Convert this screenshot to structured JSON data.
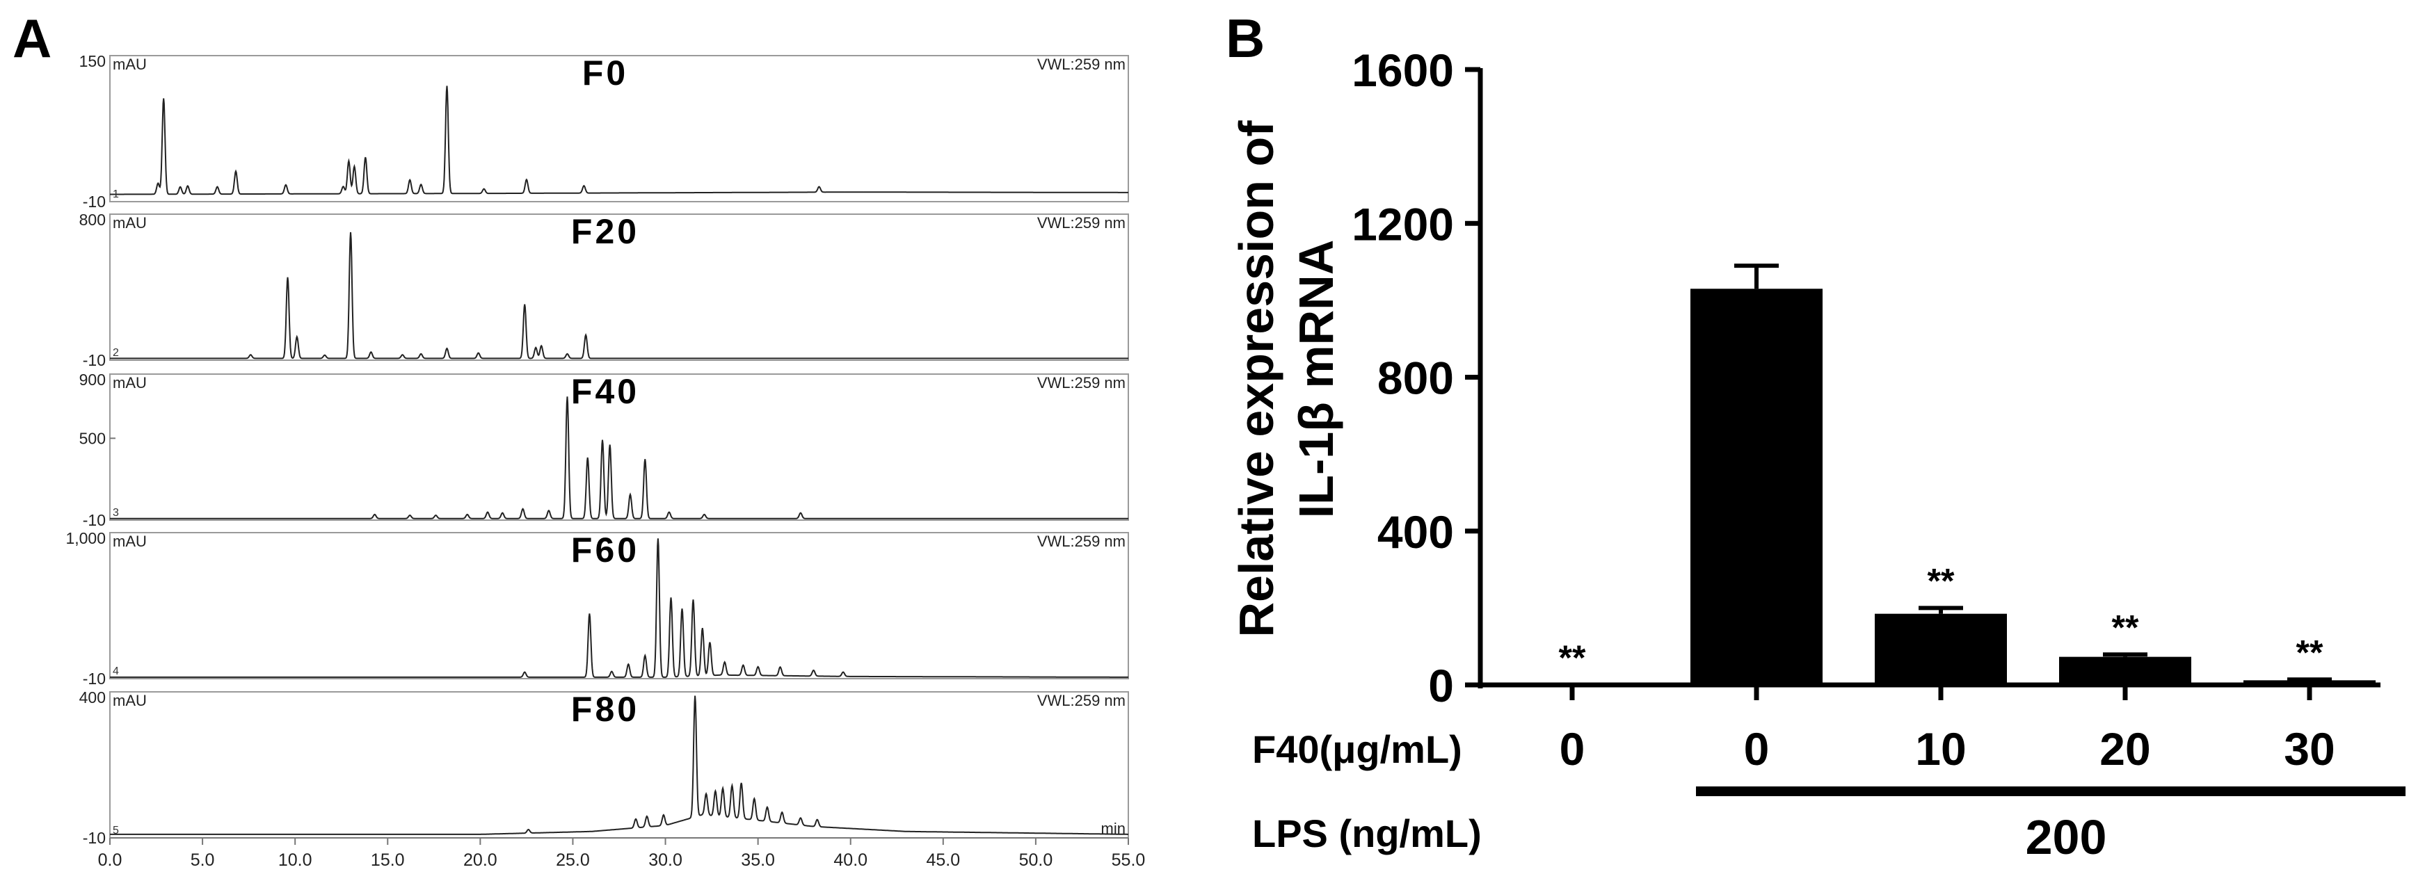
{
  "panels": {
    "a": "A",
    "b": "B"
  },
  "chart_data": [
    {
      "type": "line",
      "panel": "A",
      "x_ticks": [
        "0.0",
        "5.0",
        "10.0",
        "15.0",
        "20.0",
        "25.0",
        "30.0",
        "35.0",
        "40.0",
        "45.0",
        "50.0",
        "55.0"
      ],
      "x_unit": "min",
      "xlim": [
        0,
        55
      ],
      "y_unit": "mAU",
      "detector": "VWL:259 nm",
      "traces": [
        {
          "name": "F0",
          "index": "1",
          "ymin_label": "-10",
          "ymax_label": "150",
          "ylim": [
            -10,
            150
          ],
          "baseline": [
            [
              0,
              -2
            ],
            [
              20,
              -1
            ],
            [
              40,
              0.5
            ],
            [
              55,
              0
            ]
          ],
          "peaks": [
            [
              2.6,
              12
            ],
            [
              2.9,
              105
            ],
            [
              3.8,
              8
            ],
            [
              4.2,
              9
            ],
            [
              5.8,
              8
            ],
            [
              6.8,
              25
            ],
            [
              9.5,
              10
            ],
            [
              12.6,
              8
            ],
            [
              12.9,
              36
            ],
            [
              13.2,
              30
            ],
            [
              13.8,
              40
            ],
            [
              16.2,
              15
            ],
            [
              16.8,
              10
            ],
            [
              18.2,
              118
            ],
            [
              20.2,
              5
            ],
            [
              22.5,
              15
            ],
            [
              25.6,
              8
            ],
            [
              38.3,
              6
            ]
          ]
        },
        {
          "name": "F20",
          "index": "2",
          "ymin_label": "-10",
          "ymax_label": "800",
          "ylim": [
            -10,
            800
          ],
          "baseline": [
            [
              0,
              0
            ],
            [
              55,
              0
            ]
          ],
          "peaks": [
            [
              7.6,
              20
            ],
            [
              9.6,
              450
            ],
            [
              10.1,
              120
            ],
            [
              11.6,
              18
            ],
            [
              13.0,
              700
            ],
            [
              14.1,
              35
            ],
            [
              15.8,
              20
            ],
            [
              16.8,
              25
            ],
            [
              18.2,
              55
            ],
            [
              19.9,
              30
            ],
            [
              22.4,
              300
            ],
            [
              23.0,
              60
            ],
            [
              23.3,
              70
            ],
            [
              24.7,
              25
            ],
            [
              25.7,
              130
            ]
          ]
        },
        {
          "name": "F40",
          "index": "3",
          "ymin_label": "-10",
          "ymax_label": "900",
          "ylim": [
            -10,
            900
          ],
          "y_mid_label": "500",
          "y_mid": 500,
          "baseline": [
            [
              0,
              0
            ],
            [
              55,
              0
            ]
          ],
          "peaks": [
            [
              14.3,
              25
            ],
            [
              16.2,
              20
            ],
            [
              17.6,
              20
            ],
            [
              19.3,
              25
            ],
            [
              20.4,
              40
            ],
            [
              21.2,
              35
            ],
            [
              22.3,
              60
            ],
            [
              23.7,
              50
            ],
            [
              24.7,
              760
            ],
            [
              25.8,
              380
            ],
            [
              26.6,
              490
            ],
            [
              27.0,
              460
            ],
            [
              28.1,
              150
            ],
            [
              28.9,
              370
            ],
            [
              30.2,
              40
            ],
            [
              32.1,
              25
            ],
            [
              37.3,
              35
            ]
          ]
        },
        {
          "name": "F60",
          "index": "4",
          "ymin_label": "-10",
          "ymax_label": "1,000",
          "ylim": [
            -10,
            1000
          ],
          "baseline": [
            [
              0,
              0
            ],
            [
              30,
              0
            ],
            [
              33,
              15
            ],
            [
              40,
              5
            ],
            [
              55,
              0
            ]
          ],
          "peaks": [
            [
              22.4,
              35
            ],
            [
              25.9,
              440
            ],
            [
              27.1,
              40
            ],
            [
              28.0,
              90
            ],
            [
              28.9,
              150
            ],
            [
              29.6,
              960
            ],
            [
              30.3,
              550
            ],
            [
              30.9,
              470
            ],
            [
              31.5,
              530
            ],
            [
              32.0,
              330
            ],
            [
              32.4,
              230
            ],
            [
              33.2,
              90
            ],
            [
              34.2,
              70
            ],
            [
              35.0,
              60
            ],
            [
              36.2,
              60
            ],
            [
              38.0,
              40
            ],
            [
              39.6,
              30
            ]
          ]
        },
        {
          "name": "F80",
          "index": "5",
          "ymin_label": "-10",
          "ymax_label": "400",
          "ylim": [
            -10,
            400
          ],
          "baseline": [
            [
              0,
              0
            ],
            [
              20,
              0
            ],
            [
              26,
              8
            ],
            [
              30,
              25
            ],
            [
              32,
              55
            ],
            [
              34,
              45
            ],
            [
              38,
              22
            ],
            [
              43,
              8
            ],
            [
              55,
              0
            ]
          ],
          "peaks": [
            [
              22.6,
              10
            ],
            [
              28.4,
              25
            ],
            [
              29.0,
              30
            ],
            [
              29.9,
              30
            ],
            [
              31.6,
              340
            ],
            [
              32.2,
              60
            ],
            [
              32.7,
              70
            ],
            [
              33.1,
              80
            ],
            [
              33.6,
              90
            ],
            [
              34.1,
              100
            ],
            [
              34.8,
              60
            ],
            [
              35.5,
              40
            ],
            [
              36.3,
              30
            ],
            [
              37.3,
              20
            ],
            [
              38.2,
              20
            ]
          ]
        }
      ]
    },
    {
      "type": "bar",
      "panel": "B",
      "ylabel_line1": "Relative expression of",
      "ylabel_line2": "IL-1β mRNA",
      "ylim": [
        0,
        1600
      ],
      "y_ticks": [
        "0",
        "400",
        "800",
        "1200",
        "1600"
      ],
      "categories": [
        "0",
        "0",
        "10",
        "20",
        "30"
      ],
      "values": [
        0,
        1030,
        185,
        73,
        12
      ],
      "errors": [
        0,
        60,
        15,
        6,
        2
      ],
      "annotations": [
        "**",
        "",
        "**",
        "**",
        "**"
      ],
      "row_labels": {
        "f40": "F40(μg/mL)",
        "lps": "LPS (ng/mL)"
      },
      "lps_value": "200"
    }
  ]
}
